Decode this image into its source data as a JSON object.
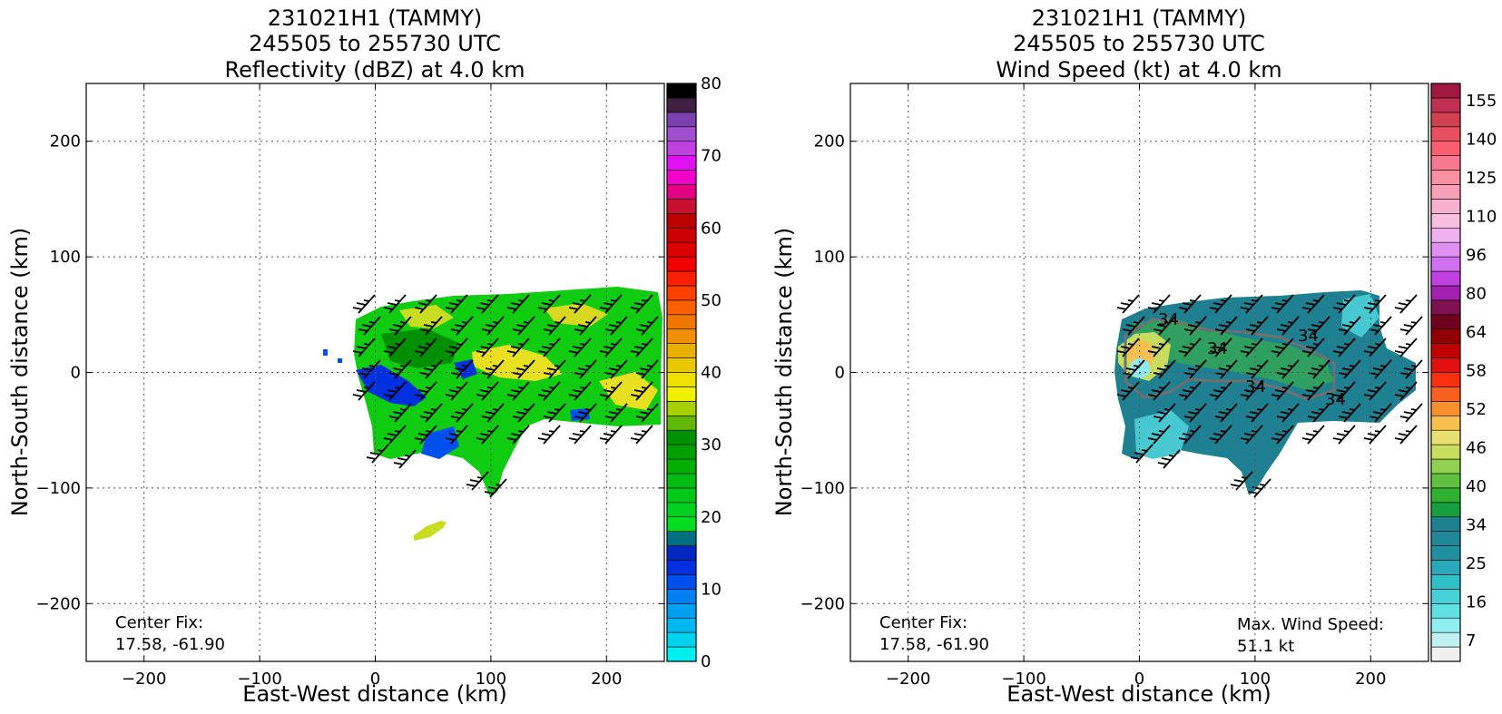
{
  "chart_data": [
    {
      "type": "heatmap",
      "title": [
        "231021H1 (TAMMY)",
        "245505 to 255730 UTC",
        "Reflectivity (dBZ) at 4.0 km"
      ],
      "xlabel": "East-West distance (km)",
      "ylabel": "North-South distance (km)",
      "xlim": [
        -250,
        250
      ],
      "ylim": [
        -250,
        250
      ],
      "xticks": [
        -200,
        -100,
        0,
        100,
        200
      ],
      "yticks": [
        200,
        100,
        0,
        -100,
        -200
      ],
      "xtick_labels": [
        "−200",
        "−100",
        "0",
        "100",
        "200"
      ],
      "ytick_labels": [
        "200",
        "100",
        "0",
        "−100",
        "−200"
      ],
      "grid": true,
      "colorbar": {
        "range": [
          0,
          80
        ],
        "ticks": [
          0,
          10,
          20,
          30,
          40,
          50,
          60,
          70,
          80
        ],
        "colors": [
          "#00eeee",
          "#00d2ee",
          "#00b8f0",
          "#00a0f0",
          "#0080f0",
          "#0050ee",
          "#0030e0",
          "#0028c0",
          "#007080",
          "#00dd20",
          "#00d020",
          "#00c818",
          "#00bb10",
          "#00b000",
          "#00a000",
          "#009000",
          "#60b800",
          "#a8d000",
          "#f0f000",
          "#f0e000",
          "#e8c800",
          "#e8b000",
          "#f09000",
          "#f07800",
          "#f86000",
          "#fb4000",
          "#fb2000",
          "#f00000",
          "#dd0000",
          "#cc0000",
          "#bb0000",
          "#c81030",
          "#e00080",
          "#f000c8",
          "#e010f0",
          "#c040e0",
          "#a050d0",
          "#7a40b0",
          "#402040",
          "#000000"
        ]
      },
      "annotations": [
        "Center Fix:",
        "17.58, -61.90"
      ]
    },
    {
      "type": "heatmap",
      "title": [
        "231021H1 (TAMMY)",
        "245505 to 255730 UTC",
        "Wind Speed (kt) at 4.0 km"
      ],
      "xlabel": "East-West distance (km)",
      "ylabel": "North-South distance (km)",
      "xlim": [
        -250,
        250
      ],
      "ylim": [
        -250,
        250
      ],
      "xticks": [
        -200,
        -100,
        0,
        100,
        200
      ],
      "yticks": [
        200,
        100,
        0,
        -100,
        -200
      ],
      "xtick_labels": [
        "−200",
        "−100",
        "0",
        "100",
        "200"
      ],
      "ytick_labels": [
        "200",
        "100",
        "0",
        "−100",
        "−200"
      ],
      "grid": true,
      "contour_labels": [
        "34",
        "34",
        "34",
        "34",
        "34"
      ],
      "colorbar": {
        "tick_labels": [
          "7",
          "16",
          "25",
          "34",
          "40",
          "46",
          "52",
          "58",
          "64",
          "80",
          "96",
          "110",
          "125",
          "140",
          "155"
        ],
        "colors": [
          "#f0f0f0",
          "#c0f0f0",
          "#90eeee",
          "#60e0e0",
          "#48d0d8",
          "#30c0c8",
          "#28a8b8",
          "#2090a0",
          "#208898",
          "#1e8090",
          "#18a040",
          "#30b030",
          "#60c040",
          "#90d050",
          "#c8dc60",
          "#e8e070",
          "#f8c050",
          "#f89030",
          "#f86020",
          "#f83010",
          "#e01010",
          "#c00000",
          "#900000",
          "#700020",
          "#801050",
          "#a020b0",
          "#c040e0",
          "#d070f0",
          "#e090f0",
          "#f0b0f0",
          "#f8c0e0",
          "#f8b0d0",
          "#f8a0b8",
          "#f890a0",
          "#f87890",
          "#f86070",
          "#e85060",
          "#d04050",
          "#c03050",
          "#a01840"
        ]
      },
      "annotations": [
        "Center Fix:",
        "17.58, -61.90",
        "Max. Wind Speed:",
        "51.1 kt"
      ]
    }
  ]
}
